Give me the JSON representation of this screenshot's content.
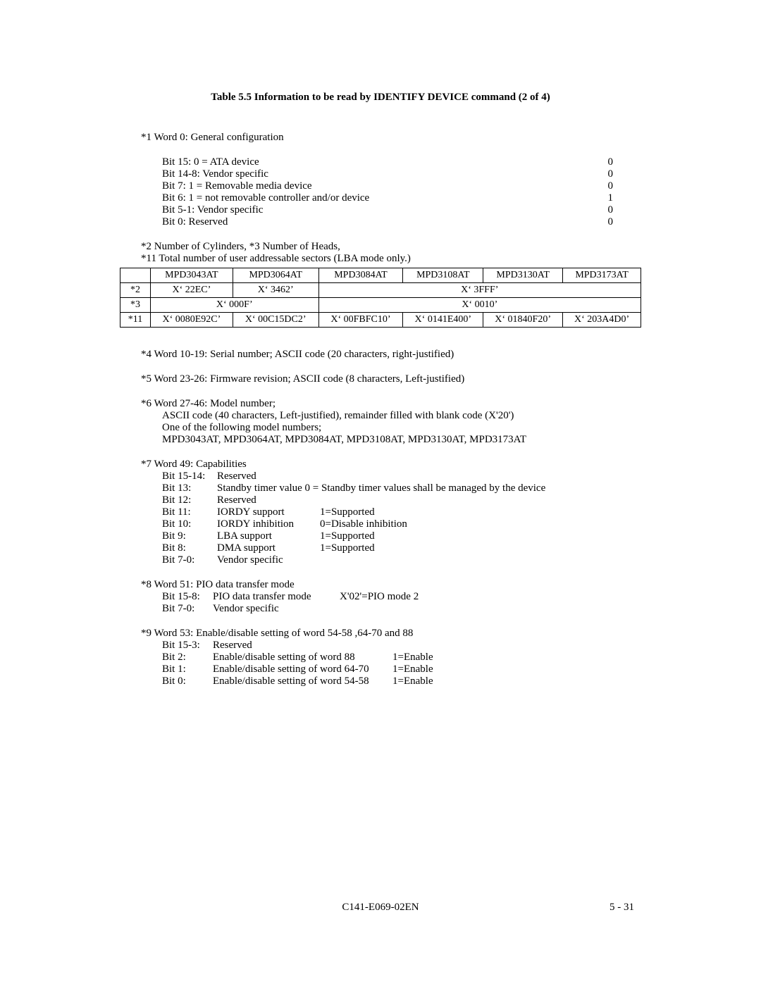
{
  "title": "Table 5.5   Information to be read by IDENTIFY DEVICE command (2 of 4)",
  "note1": {
    "heading": "*1  Word 0: General configuration",
    "rows": [
      {
        "label": "Bit 15:  0 = ATA device",
        "val": "0"
      },
      {
        "label": "Bit 14-8:  Vendor specific",
        "val": "0"
      },
      {
        "label": "Bit 7:  1 = Removable media device",
        "val": "0"
      },
      {
        "label": "Bit 6:  1 = not removable controller and/or device",
        "val": "1"
      },
      {
        "label": "Bit 5-1:  Vendor specific",
        "val": "0"
      },
      {
        "label": "Bit 0:  Reserved",
        "val": "0"
      }
    ]
  },
  "note2_3_11_heading1": "*2  Number of Cylinders, *3  Number of Heads,",
  "note2_3_11_heading2": "*11  Total number of user addressable sectors (LBA mode only.)",
  "table": {
    "headers": [
      "MPD3043AT",
      "MPD3064AT",
      "MPD3084AT",
      "MPD3108AT",
      "MPD3130AT",
      "MPD3173AT"
    ],
    "row2": {
      "label": "*2",
      "c1": "X‘ 22EC’",
      "c2": "X‘ 3462’",
      "c3456": "X‘ 3FFF’"
    },
    "row3": {
      "label": "*3",
      "c12": "X‘ 000F’",
      "c3456": "X‘ 0010’"
    },
    "row11": {
      "label": "*11",
      "cells": [
        "X‘ 0080E92C’",
        "X‘ 00C15DC2’",
        "X‘ 00FBFC10’",
        "X‘ 0141E400’",
        "X‘ 01840F20’",
        "X‘ 203A4D0’"
      ]
    }
  },
  "note4": "*4  Word 10-19: Serial number; ASCII code (20 characters, right-justified)",
  "note5": "*5  Word 23-26: Firmware revision; ASCII code (8 characters, Left-justified)",
  "note6": {
    "l1": "*6  Word 27-46: Model number;",
    "l2": "ASCII code (40 characters, Left-justified), remainder filled with blank code (X'20')",
    "l3": "One of the following model numbers;",
    "l4": "MPD3043AT, MPD3064AT, MPD3084AT, MPD3108AT, MPD3130AT, MPD3173AT"
  },
  "note7": {
    "heading": "*7  Word 49:  Capabilities",
    "rows": [
      {
        "a": "Bit 15-14:",
        "b": "Reserved",
        "c": ""
      },
      {
        "a": "Bit 13:",
        "b": "Standby timer value 0 = Standby timer values shall be managed by the device",
        "c": "",
        "span": true
      },
      {
        "a": "Bit 12:",
        "b": "Reserved",
        "c": ""
      },
      {
        "a": "Bit 11:",
        "b": "IORDY support",
        "c": "1=Supported"
      },
      {
        "a": "Bit 10:",
        "b": "IORDY inhibition",
        "c": "0=Disable inhibition"
      },
      {
        "a": "Bit 9:",
        "b": "LBA support",
        "c": "1=Supported"
      },
      {
        "a": "Bit 8:",
        "b": "DMA support",
        "c": "1=Supported"
      },
      {
        "a": "Bit 7-0:",
        "b": "Vendor specific",
        "c": ""
      }
    ]
  },
  "note8": {
    "heading": "*8  Word 51: PIO data transfer mode",
    "l1a": "Bit 15-8:",
    "l1b": "PIO data transfer mode",
    "l1c": "X'02'=PIO mode 2",
    "l2a": "Bit 7-0:",
    "l2b": "Vendor specific"
  },
  "note9": {
    "heading": "*9  Word 53: Enable/disable setting of word 54-58 ,64-70 and 88",
    "rows": [
      {
        "a": "Bit 15-3:",
        "b": "Reserved",
        "c": ""
      },
      {
        "a": "Bit 2:",
        "b": "Enable/disable setting of word 88",
        "c": "1=Enable"
      },
      {
        "a": "Bit 1:",
        "b": "Enable/disable setting of word 64-70",
        "c": "1=Enable"
      },
      {
        "a": "Bit 0:",
        "b": "Enable/disable setting of word 54-58",
        "c": "1=Enable"
      }
    ]
  },
  "footer": {
    "doc": "C141-E069-02EN",
    "page": "5 - 31"
  }
}
